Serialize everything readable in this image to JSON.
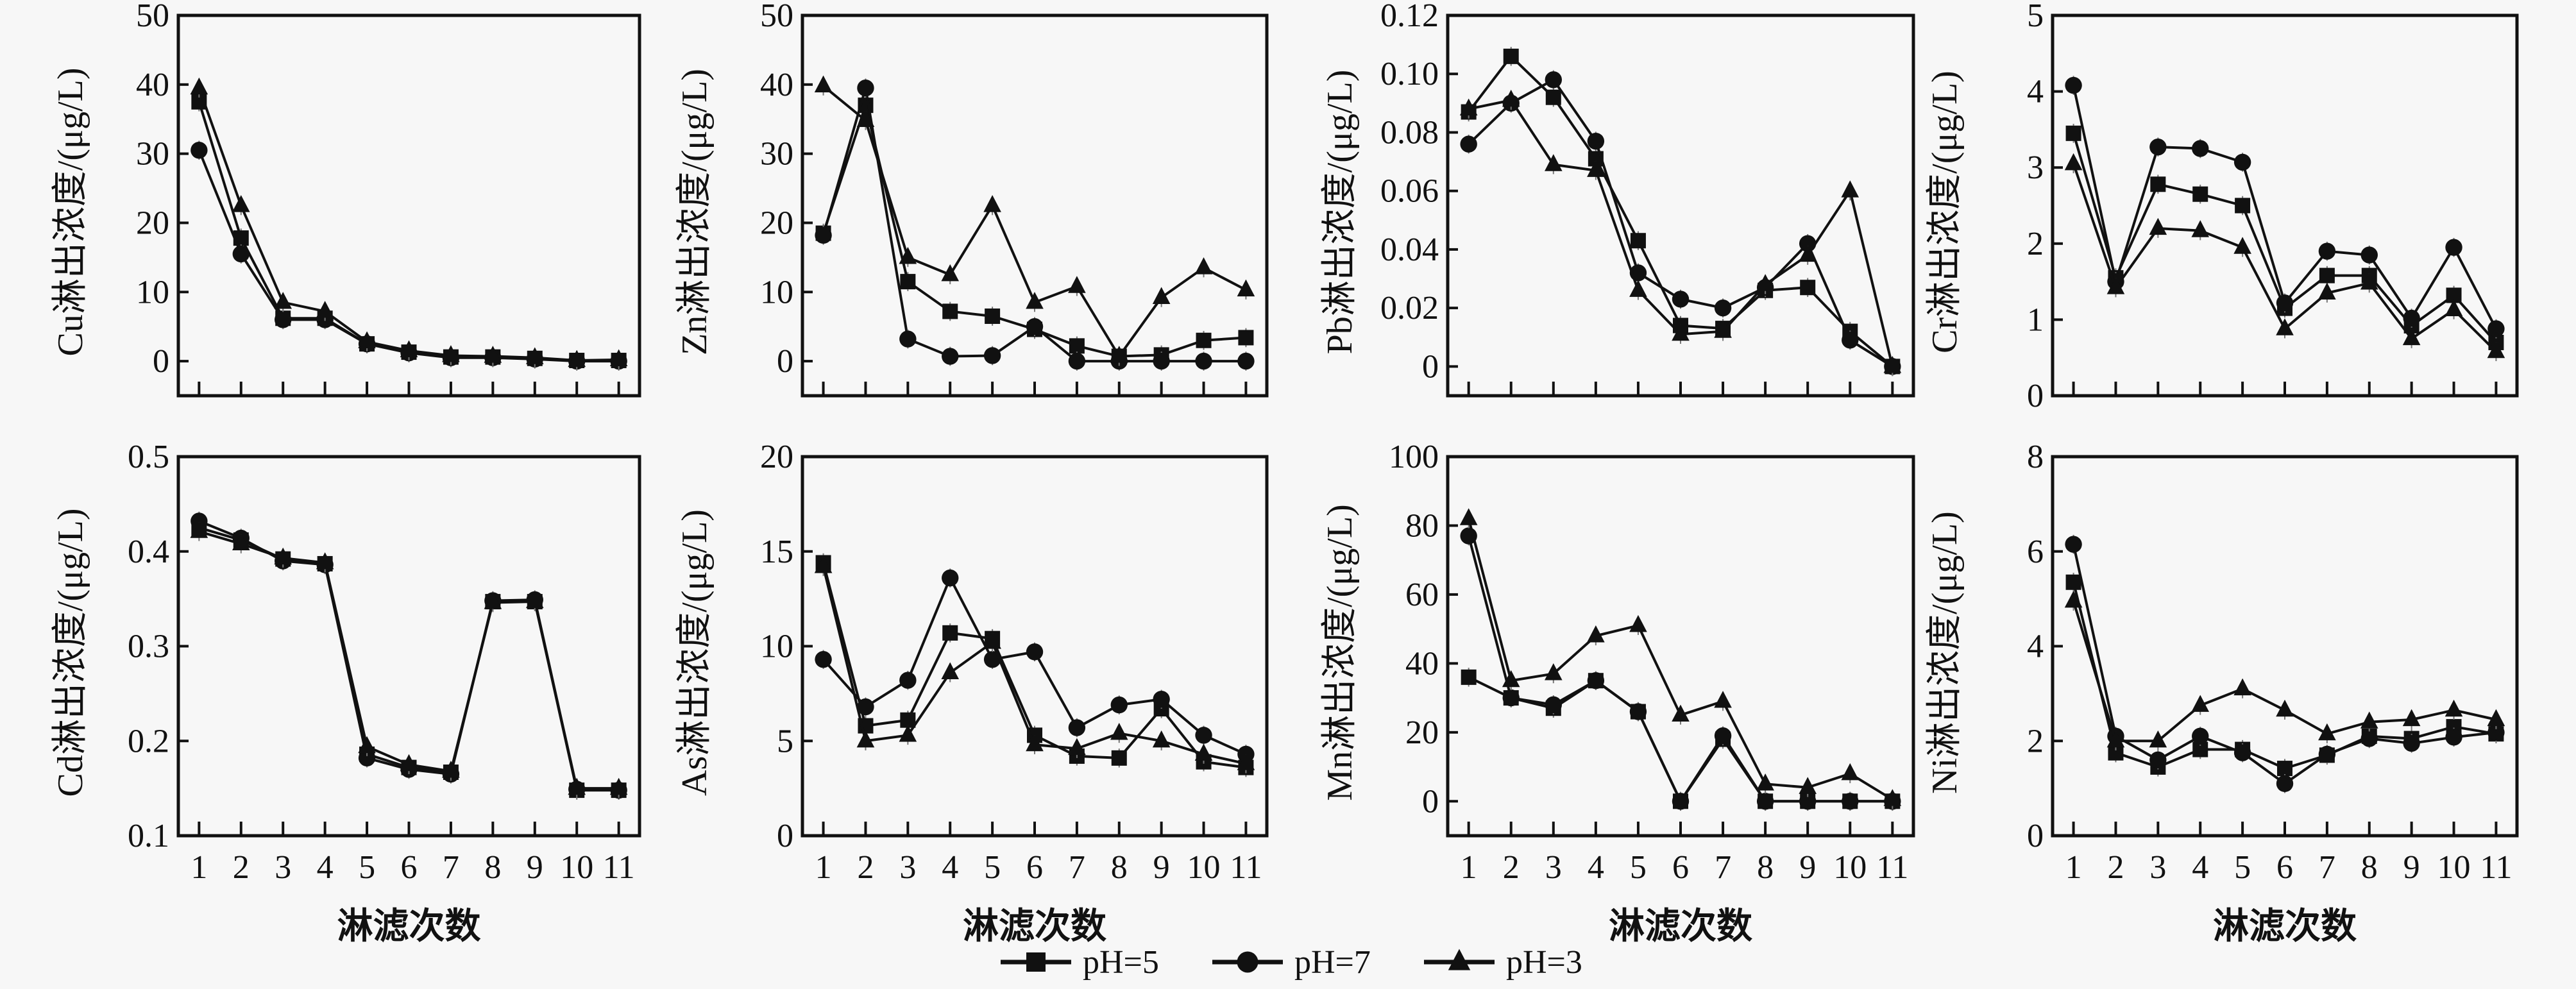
{
  "figure": {
    "legend": [
      {
        "name": "pH=5",
        "marker": "square"
      },
      {
        "name": "pH=7",
        "marker": "circle"
      },
      {
        "name": "pH=3",
        "marker": "triangle"
      }
    ],
    "legend_placement": "bottom-center"
  },
  "chart_data": [
    {
      "type": "line",
      "element": "Cu",
      "ylabel": "Cu淋出浓度/(μg/L)",
      "xlabel": "",
      "x": [
        1,
        2,
        3,
        4,
        5,
        6,
        7,
        8,
        9,
        10,
        11
      ],
      "ylim": [
        -5,
        50
      ],
      "yticks": [
        0,
        10,
        20,
        30,
        40,
        50
      ],
      "series": [
        {
          "name": "pH=5",
          "values": [
            37.5,
            17.8,
            6.2,
            6.2,
            2.5,
            1.3,
            0.6,
            0.6,
            0.4,
            0.1,
            0.1
          ]
        },
        {
          "name": "pH=7",
          "values": [
            30.5,
            15.5,
            6.0,
            6.0,
            2.5,
            1.2,
            0.5,
            0.5,
            0.3,
            0.0,
            0.0
          ]
        },
        {
          "name": "pH=3",
          "values": [
            39.5,
            22.5,
            8.5,
            7.2,
            2.8,
            1.5,
            0.8,
            0.7,
            0.5,
            0.1,
            0.2
          ]
        }
      ]
    },
    {
      "type": "line",
      "element": "Zn",
      "ylabel": "Zn淋出浓度/(μg/L)",
      "xlabel": "",
      "x": [
        1,
        2,
        3,
        4,
        5,
        6,
        7,
        8,
        9,
        10,
        11
      ],
      "ylim": [
        -5,
        50
      ],
      "yticks": [
        0,
        10,
        20,
        30,
        40,
        50
      ],
      "series": [
        {
          "name": "pH=5",
          "values": [
            18.5,
            37.0,
            11.5,
            7.2,
            6.5,
            4.6,
            2.2,
            0.7,
            0.9,
            3.0,
            3.4
          ]
        },
        {
          "name": "pH=7",
          "values": [
            18.2,
            39.5,
            3.2,
            0.7,
            0.8,
            5.0,
            0.0,
            0.0,
            0.0,
            0.0,
            0.0
          ]
        },
        {
          "name": "pH=3",
          "values": [
            39.8,
            34.8,
            15.0,
            12.5,
            22.5,
            8.5,
            10.8,
            0.7,
            9.2,
            13.5,
            10.3
          ]
        }
      ]
    },
    {
      "type": "line",
      "element": "Pb",
      "ylabel": "Pb淋出浓度/(μg/L)",
      "xlabel": "",
      "x": [
        1,
        2,
        3,
        4,
        5,
        6,
        7,
        8,
        9,
        10,
        11
      ],
      "ylim": [
        -0.01,
        0.12
      ],
      "yticks": [
        0,
        0.02,
        0.04,
        0.06,
        0.08,
        0.1,
        0.12
      ],
      "yticklabels": [
        "0",
        "0.02",
        "0.04",
        "0.06",
        "0.08",
        "0.10",
        "0.12"
      ],
      "series": [
        {
          "name": "pH=5",
          "values": [
            0.087,
            0.106,
            0.092,
            0.071,
            0.043,
            0.014,
            0.013,
            0.026,
            0.027,
            0.012,
            0.0
          ]
        },
        {
          "name": "pH=7",
          "values": [
            0.076,
            0.09,
            0.098,
            0.077,
            0.032,
            0.023,
            0.02,
            0.027,
            0.042,
            0.009,
            0.0
          ]
        },
        {
          "name": "pH=3",
          "values": [
            0.088,
            0.091,
            0.069,
            0.067,
            0.026,
            0.011,
            0.012,
            0.028,
            0.038,
            0.06,
            0.0
          ]
        }
      ]
    },
    {
      "type": "line",
      "element": "Cr",
      "ylabel": "Cr淋出浓度/(μg/L)",
      "xlabel": "",
      "x": [
        1,
        2,
        3,
        4,
        5,
        6,
        7,
        8,
        9,
        10,
        11
      ],
      "ylim": [
        0,
        5
      ],
      "yticks": [
        0,
        1,
        2,
        3,
        4,
        5
      ],
      "series": [
        {
          "name": "pH=5",
          "values": [
            3.45,
            1.55,
            2.78,
            2.65,
            2.5,
            1.15,
            1.58,
            1.58,
            0.92,
            1.32,
            0.7
          ]
        },
        {
          "name": "pH=7",
          "values": [
            4.08,
            1.5,
            3.27,
            3.25,
            3.07,
            1.22,
            1.9,
            1.85,
            1.02,
            1.95,
            0.88
          ]
        },
        {
          "name": "pH=3",
          "values": [
            3.05,
            1.42,
            2.2,
            2.17,
            1.95,
            0.88,
            1.35,
            1.48,
            0.75,
            1.13,
            0.58
          ]
        }
      ]
    },
    {
      "type": "line",
      "element": "Cd",
      "ylabel": "Cd淋出浓度/(μg/L)",
      "xlabel": "淋滤次数",
      "x": [
        1,
        2,
        3,
        4,
        5,
        6,
        7,
        8,
        9,
        10,
        11
      ],
      "ylim": [
        0.1,
        0.5
      ],
      "yticks": [
        0.1,
        0.2,
        0.3,
        0.4,
        0.5
      ],
      "series": [
        {
          "name": "pH=5",
          "values": [
            0.425,
            0.412,
            0.392,
            0.387,
            0.186,
            0.172,
            0.167,
            0.347,
            0.347,
            0.148,
            0.148
          ]
        },
        {
          "name": "pH=7",
          "values": [
            0.432,
            0.414,
            0.39,
            0.386,
            0.182,
            0.17,
            0.165,
            0.348,
            0.349,
            0.149,
            0.148
          ]
        },
        {
          "name": "pH=3",
          "values": [
            0.421,
            0.408,
            0.393,
            0.388,
            0.194,
            0.175,
            0.168,
            0.346,
            0.347,
            0.15,
            0.15
          ]
        }
      ]
    },
    {
      "type": "line",
      "element": "As",
      "ylabel": "As淋出浓度/(μg/L)",
      "xlabel": "淋滤次数",
      "x": [
        1,
        2,
        3,
        4,
        5,
        6,
        7,
        8,
        9,
        10,
        11
      ],
      "ylim": [
        0,
        20
      ],
      "yticks": [
        0,
        5,
        10,
        15,
        20
      ],
      "series": [
        {
          "name": "pH=5",
          "values": [
            14.4,
            5.8,
            6.1,
            10.7,
            10.4,
            5.3,
            4.2,
            4.1,
            6.7,
            3.9,
            3.6
          ]
        },
        {
          "name": "pH=7",
          "values": [
            9.3,
            6.8,
            8.2,
            13.6,
            9.3,
            9.7,
            5.7,
            6.9,
            7.2,
            5.3,
            4.3
          ]
        },
        {
          "name": "pH=3",
          "values": [
            14.2,
            5.0,
            5.3,
            8.6,
            10.2,
            4.8,
            4.6,
            5.4,
            5.0,
            4.3,
            3.8
          ]
        }
      ]
    },
    {
      "type": "line",
      "element": "Mn",
      "ylabel": "Mn淋出浓度/(μg/L)",
      "xlabel": "淋滤次数",
      "x": [
        1,
        2,
        3,
        4,
        5,
        6,
        7,
        8,
        9,
        10,
        11
      ],
      "ylim": [
        -10,
        100
      ],
      "yticks": [
        0,
        20,
        40,
        60,
        80,
        100
      ],
      "series": [
        {
          "name": "pH=5",
          "values": [
            36,
            30,
            27,
            35,
            26,
            0,
            18,
            0,
            0,
            0,
            0
          ]
        },
        {
          "name": "pH=7",
          "values": [
            77,
            30,
            28,
            35,
            26,
            0,
            19,
            0,
            0,
            0,
            0
          ]
        },
        {
          "name": "pH=3",
          "values": [
            82,
            35,
            37,
            48,
            51,
            25,
            29,
            5,
            4,
            8,
            0.5
          ]
        }
      ]
    },
    {
      "type": "line",
      "element": "Ni",
      "ylabel": "Ni淋出浓度/(μg/L)",
      "xlabel": "淋滤次数",
      "x": [
        1,
        2,
        3,
        4,
        5,
        6,
        7,
        8,
        9,
        10,
        11
      ],
      "ylim": [
        0,
        8
      ],
      "yticks": [
        0,
        2,
        4,
        6,
        8
      ],
      "series": [
        {
          "name": "pH=5",
          "values": [
            5.35,
            1.75,
            1.45,
            1.82,
            1.82,
            1.42,
            1.7,
            2.1,
            2.05,
            2.3,
            2.15
          ]
        },
        {
          "name": "pH=7",
          "values": [
            6.15,
            2.1,
            1.6,
            2.1,
            1.75,
            1.1,
            1.72,
            2.05,
            1.95,
            2.08,
            2.18
          ]
        },
        {
          "name": "pH=3",
          "values": [
            4.95,
            2.0,
            2.0,
            2.75,
            3.1,
            2.65,
            2.15,
            2.4,
            2.45,
            2.65,
            2.45
          ]
        }
      ]
    }
  ]
}
